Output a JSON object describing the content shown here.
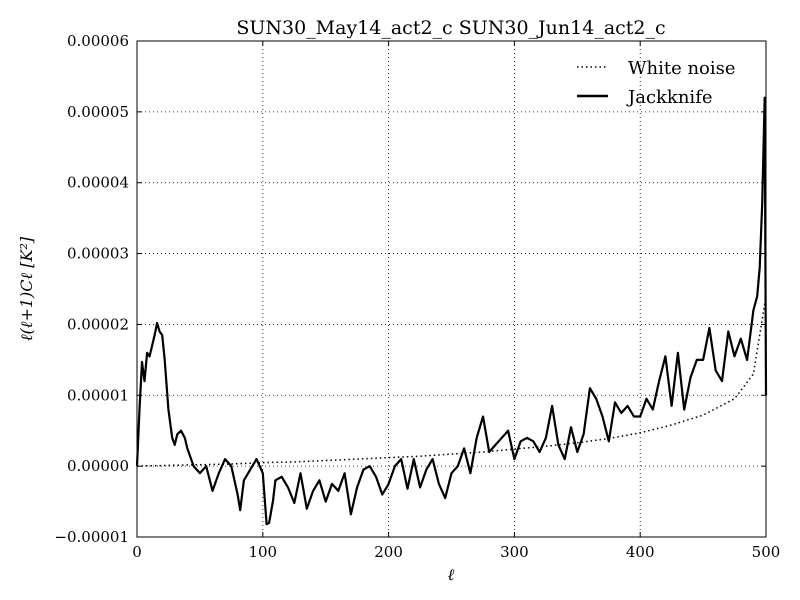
{
  "chart_data": {
    "type": "line",
    "title": "SUN30_May14_act2_c SUN30_Jun14_act2_c",
    "xlabel": "ℓ",
    "ylabel": "ℓ(ℓ+1)Cℓ [K²]",
    "xlim": [
      0,
      500
    ],
    "ylim": [
      -1e-05,
      6e-05
    ],
    "x_ticks": [
      0,
      100,
      200,
      300,
      400,
      500
    ],
    "x_tick_labels": [
      "0",
      "100",
      "200",
      "300",
      "400",
      "500"
    ],
    "y_ticks": [
      -1e-05,
      0,
      1e-05,
      2e-05,
      3e-05,
      4e-05,
      5e-05,
      6e-05
    ],
    "y_tick_labels": [
      "−0.00001",
      "0.00000",
      "0.00001",
      "0.00002",
      "0.00003",
      "0.00004",
      "0.00005",
      "0.00006"
    ],
    "grid": true,
    "legend_position": "top-right",
    "series": [
      {
        "name": "White noise",
        "style": "dotted",
        "color": "#000000",
        "x": [
          0,
          25,
          50,
          75,
          100,
          125,
          150,
          175,
          200,
          225,
          250,
          275,
          300,
          325,
          350,
          375,
          400,
          425,
          450,
          475,
          490,
          500
        ],
        "y": [
          0.0,
          1e-07,
          2e-07,
          3e-07,
          5e-07,
          6e-07,
          8e-07,
          1e-06,
          1.2e-06,
          1.4e-06,
          1.7e-06,
          2e-06,
          2.4e-06,
          2.8e-06,
          3.3e-06,
          3.9e-06,
          4.7e-06,
          5.8e-06,
          7.2e-06,
          9.5e-06,
          1.3e-05,
          2.4e-05
        ]
      },
      {
        "name": "Jackknife",
        "style": "solid",
        "color": "#000000",
        "x": [
          0,
          2,
          4,
          6,
          8,
          10,
          12,
          14,
          16,
          18,
          20,
          22,
          25,
          28,
          30,
          32,
          35,
          38,
          40,
          45,
          50,
          55,
          60,
          65,
          70,
          75,
          80,
          82,
          85,
          90,
          95,
          100,
          103,
          105,
          108,
          110,
          115,
          120,
          125,
          130,
          135,
          140,
          145,
          150,
          155,
          160,
          165,
          170,
          175,
          180,
          185,
          190,
          195,
          200,
          205,
          210,
          215,
          220,
          225,
          230,
          235,
          240,
          245,
          250,
          255,
          260,
          265,
          270,
          275,
          280,
          285,
          290,
          295,
          300,
          305,
          310,
          315,
          320,
          325,
          330,
          335,
          340,
          345,
          350,
          355,
          360,
          365,
          370,
          375,
          380,
          385,
          390,
          395,
          400,
          405,
          410,
          415,
          420,
          425,
          430,
          435,
          440,
          445,
          450,
          455,
          460,
          465,
          470,
          475,
          480,
          485,
          490,
          493,
          495,
          497,
          499,
          500
        ],
        "y": [
          0.0,
          8e-06,
          1.47e-05,
          1.2e-05,
          1.6e-05,
          1.55e-05,
          1.7e-05,
          1.85e-05,
          2.02e-05,
          1.9e-05,
          1.85e-05,
          1.5e-05,
          8e-06,
          4e-06,
          3e-06,
          4.5e-06,
          5e-06,
          4e-06,
          2.5e-06,
          0.0,
          -1e-06,
          0.0,
          -3.5e-06,
          -1e-06,
          1e-06,
          0.0,
          -4e-06,
          -6.2e-06,
          -2e-06,
          -5e-07,
          1e-06,
          -1e-06,
          -8.2e-06,
          -8e-06,
          -5e-06,
          -2e-06,
          -1.5e-06,
          -3e-06,
          -5.2e-06,
          -1e-06,
          -6e-06,
          -3.5e-06,
          -2e-06,
          -5e-06,
          -2.5e-06,
          -3.5e-06,
          -1e-06,
          -6.8e-06,
          -3e-06,
          -5e-07,
          0.0,
          -1.5e-06,
          -4e-06,
          -2.5e-06,
          0.0,
          1e-06,
          -3.2e-06,
          1e-06,
          -3e-06,
          -5e-07,
          1e-06,
          -2.5e-06,
          -4.5e-06,
          -1e-06,
          0.0,
          2.5e-06,
          -1e-06,
          4e-06,
          7e-06,
          2e-06,
          3e-06,
          4e-06,
          5e-06,
          1e-06,
          3.5e-06,
          4e-06,
          3.5e-06,
          2e-06,
          4e-06,
          8.5e-06,
          3e-06,
          1e-06,
          5.5e-06,
          2e-06,
          4.5e-06,
          1.1e-05,
          9.5e-06,
          7e-06,
          3.5e-06,
          9e-06,
          7.5e-06,
          8.5e-06,
          7e-06,
          7e-06,
          9.5e-06,
          8e-06,
          1.2e-05,
          1.55e-05,
          8.5e-06,
          1.6e-05,
          8e-06,
          1.25e-05,
          1.5e-05,
          1.5e-05,
          1.95e-05,
          1.35e-05,
          1.2e-05,
          1.9e-05,
          1.55e-05,
          1.8e-05,
          1.5e-05,
          2.2e-05,
          2.4e-05,
          2.8e-05,
          3.7e-05,
          5.2e-05,
          1e-05
        ]
      }
    ]
  }
}
